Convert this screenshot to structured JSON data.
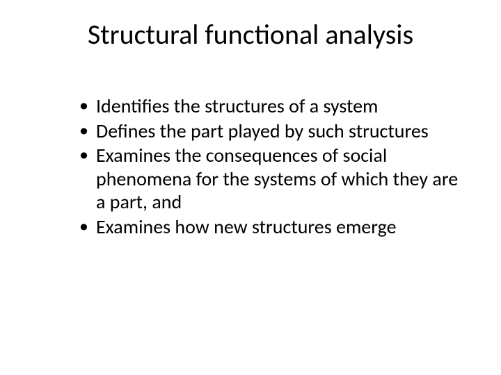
{
  "slide": {
    "title": "Structural functional analysis",
    "bullets": [
      "Identifies the structures of a system",
      "Defines the part played by such structures",
      "Examines the consequences of social phenomena for the systems of which they are a part, and",
      "Examines how new structures emerge"
    ]
  },
  "style": {
    "background_color": "#ffffff",
    "text_color": "#000000",
    "title_fontsize": 40,
    "bullet_fontsize": 28,
    "font_family": "Calibri"
  }
}
